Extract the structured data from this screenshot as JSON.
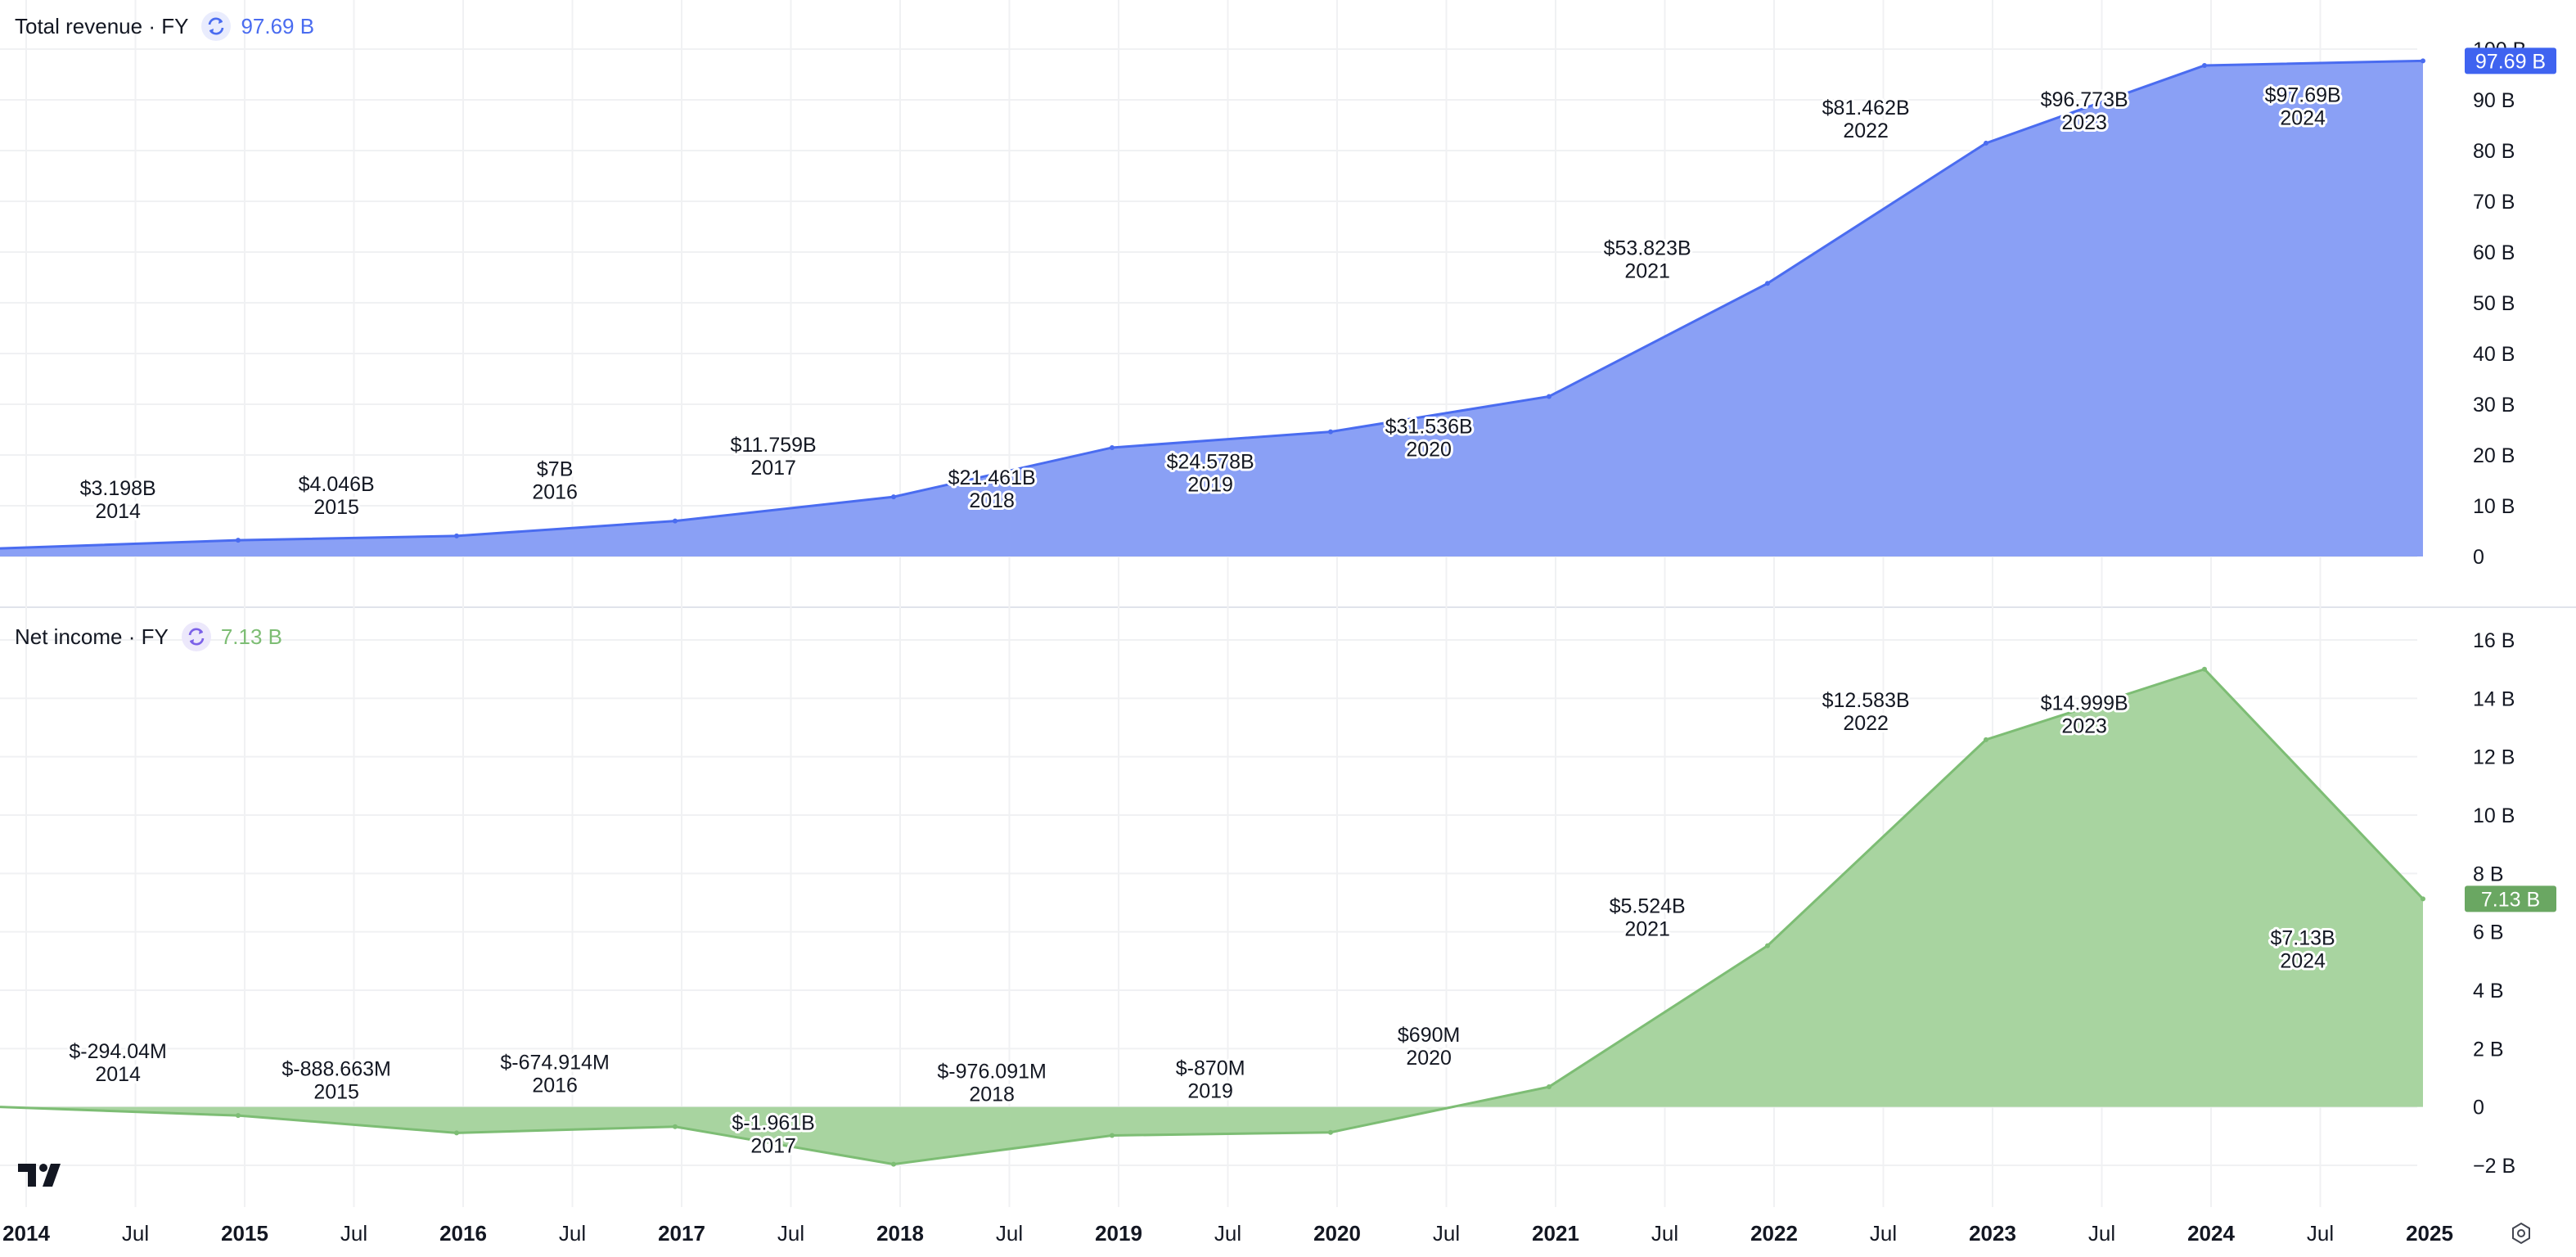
{
  "colors": {
    "revenue": "#4a6cf0",
    "revenue_fill": "#8aa0f5",
    "income": "#7dbd74",
    "income_fill": "#a8d4a0",
    "grid": "#f0f1f3",
    "separator": "#e0e3eb"
  },
  "legends": {
    "revenue": {
      "title": "Total revenue · FY",
      "value": "97.69 B"
    },
    "income": {
      "title": "Net income · FY",
      "value": "7.13 B"
    }
  },
  "chart_data": [
    {
      "type": "area",
      "series": [
        {
          "name": "Total revenue · FY",
          "years": [
            2014,
            2015,
            2016,
            2017,
            2018,
            2019,
            2020,
            2021,
            2022,
            2023,
            2024
          ],
          "values": [
            3.198,
            4.046,
            7,
            11.759,
            21.461,
            24.578,
            31.536,
            53.823,
            81.462,
            96.773,
            97.69
          ],
          "labels": [
            "$3.198B",
            "$4.046B",
            "$7B",
            "$11.759B",
            "$21.461B",
            "$24.578B",
            "$31.536B",
            "$53.823B",
            "$81.462B",
            "$96.773B",
            "$97.69B"
          ],
          "year_labels": [
            "2014",
            "2015",
            "2016",
            "2017",
            "2018",
            "2019",
            "2020",
            "2021",
            "2022",
            "2023",
            "2024"
          ],
          "start_value": 1.6
        }
      ],
      "ylim": [
        0,
        100
      ],
      "yticks": [
        0,
        10,
        20,
        30,
        40,
        50,
        60,
        70,
        80,
        90,
        100
      ],
      "ytick_labels": [
        "0",
        "10 B",
        "20 B",
        "30 B",
        "40 B",
        "50 B",
        "60 B",
        "70 B",
        "80 B",
        "90 B",
        "100 B"
      ],
      "last_value_label": "97.69 B",
      "grid": true
    },
    {
      "type": "area",
      "series": [
        {
          "name": "Net income · FY",
          "years": [
            2014,
            2015,
            2016,
            2017,
            2018,
            2019,
            2020,
            2021,
            2022,
            2023,
            2024
          ],
          "values": [
            -0.29404,
            -0.888663,
            -0.674914,
            -1.961,
            -0.976091,
            -0.87,
            0.69,
            5.524,
            12.583,
            14.999,
            7.13
          ],
          "labels": [
            "$-294.04M",
            "$-888.663M",
            "$-674.914M",
            "$-1.961B",
            "$-976.091M",
            "$-870M",
            "$690M",
            "$5.524B",
            "$12.583B",
            "$14.999B",
            "$7.13B"
          ],
          "year_labels": [
            "2014",
            "2015",
            "2016",
            "2017",
            "2018",
            "2019",
            "2020",
            "2021",
            "2022",
            "2023",
            "2024"
          ],
          "start_value": 0.0
        }
      ],
      "ylim": [
        -2,
        16
      ],
      "yticks": [
        -2,
        0,
        2,
        4,
        6,
        8,
        10,
        12,
        14,
        16
      ],
      "ytick_labels": [
        "−2 B",
        "0",
        "2 B",
        "4 B",
        "6 B",
        "8 B",
        "10 B",
        "12 B",
        "14 B",
        "16 B"
      ],
      "last_value_label": "7.13 B",
      "grid": true
    }
  ],
  "x_axis": {
    "ticks": [
      {
        "label": "2014",
        "bold": true
      },
      {
        "label": "Jul",
        "bold": false
      },
      {
        "label": "2015",
        "bold": true
      },
      {
        "label": "Jul",
        "bold": false
      },
      {
        "label": "2016",
        "bold": true
      },
      {
        "label": "Jul",
        "bold": false
      },
      {
        "label": "2017",
        "bold": true
      },
      {
        "label": "Jul",
        "bold": false
      },
      {
        "label": "2018",
        "bold": true
      },
      {
        "label": "Jul",
        "bold": false
      },
      {
        "label": "2019",
        "bold": true
      },
      {
        "label": "Jul",
        "bold": false
      },
      {
        "label": "2020",
        "bold": true
      },
      {
        "label": "Jul",
        "bold": false
      },
      {
        "label": "2021",
        "bold": true
      },
      {
        "label": "Jul",
        "bold": false
      },
      {
        "label": "2022",
        "bold": true
      },
      {
        "label": "Jul",
        "bold": false
      },
      {
        "label": "2023",
        "bold": true
      },
      {
        "label": "Jul",
        "bold": false
      },
      {
        "label": "2024",
        "bold": true
      },
      {
        "label": "Jul",
        "bold": false
      },
      {
        "label": "2025",
        "bold": true
      }
    ]
  },
  "icons": {
    "logo": "tradingview-logo-icon",
    "settings": "settings-gear-icon",
    "refresh": "refresh-icon"
  }
}
